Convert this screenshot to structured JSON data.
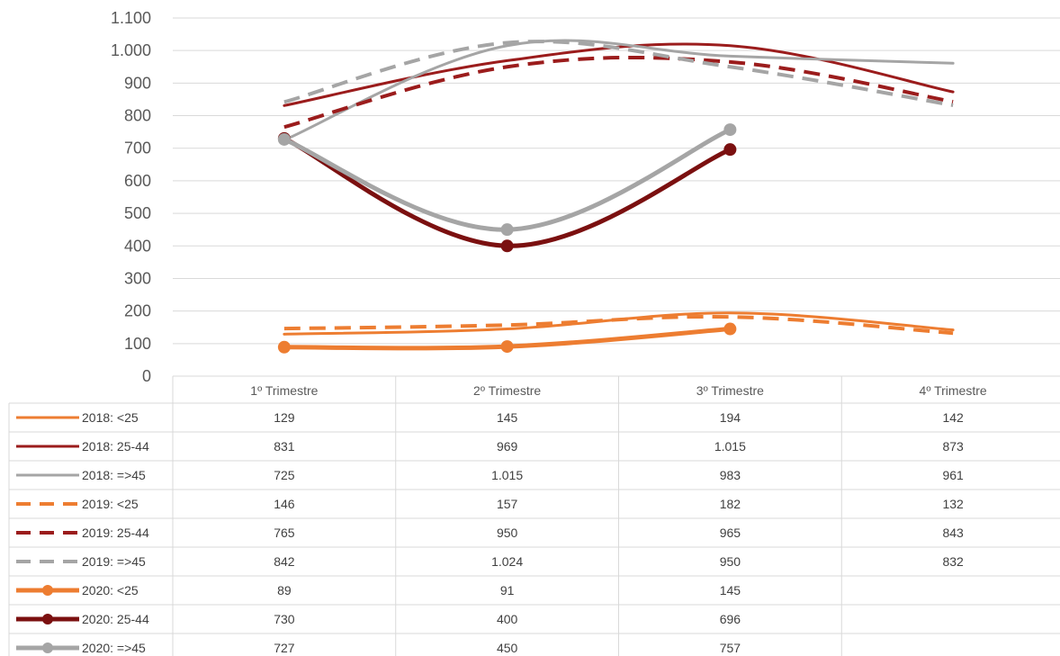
{
  "chart_data": {
    "type": "line",
    "categories": [
      "1º Trimestre",
      "2º Trimestre",
      "3º Trimestre",
      "4º Trimestre"
    ],
    "ylim": [
      0,
      1100
    ],
    "yticks": [
      0,
      100,
      200,
      300,
      400,
      500,
      600,
      700,
      800,
      900,
      1000,
      1100
    ],
    "ytick_labels": [
      "0",
      "100",
      "200",
      "300",
      "400",
      "500",
      "600",
      "700",
      "800",
      "900",
      "1.000",
      "1.100"
    ],
    "grid": true,
    "legend": "data-table-left",
    "series": [
      {
        "name": "2018: <25",
        "values": [
          129,
          145,
          194,
          142
        ],
        "labels": [
          "129",
          "145",
          "194",
          "142"
        ],
        "color": "#ED7D31",
        "style": "solid"
      },
      {
        "name": "2018: 25-44",
        "values": [
          831,
          969,
          1015,
          873
        ],
        "labels": [
          "831",
          "969",
          "1.015",
          "873"
        ],
        "color": "#9B1C1C",
        "style": "solid"
      },
      {
        "name": "2018: =>45",
        "values": [
          725,
          1015,
          983,
          961
        ],
        "labels": [
          "725",
          "1.015",
          "983",
          "961"
        ],
        "color": "#A5A5A5",
        "style": "solid"
      },
      {
        "name": "2019: <25",
        "values": [
          146,
          157,
          182,
          132
        ],
        "labels": [
          "146",
          "157",
          "182",
          "132"
        ],
        "color": "#ED7D31",
        "style": "dashed"
      },
      {
        "name": "2019: 25-44",
        "values": [
          765,
          950,
          965,
          843
        ],
        "labels": [
          "765",
          "950",
          "965",
          "843"
        ],
        "color": "#9B1C1C",
        "style": "dashed"
      },
      {
        "name": "2019: =>45",
        "values": [
          842,
          1024,
          950,
          832
        ],
        "labels": [
          "842",
          "1.024",
          "950",
          "832"
        ],
        "color": "#A5A5A5",
        "style": "dashed"
      },
      {
        "name": "2020: <25",
        "values": [
          89,
          91,
          145,
          null
        ],
        "labels": [
          "89",
          "91",
          "145",
          ""
        ],
        "color": "#ED7D31",
        "style": "marker"
      },
      {
        "name": "2020: 25-44",
        "values": [
          730,
          400,
          696,
          null
        ],
        "labels": [
          "730",
          "400",
          "696",
          ""
        ],
        "color": "#7B1010",
        "style": "marker"
      },
      {
        "name": "2020: =>45",
        "values": [
          727,
          450,
          757,
          null
        ],
        "labels": [
          "727",
          "450",
          "757",
          ""
        ],
        "color": "#A5A5A5",
        "style": "marker"
      }
    ]
  }
}
